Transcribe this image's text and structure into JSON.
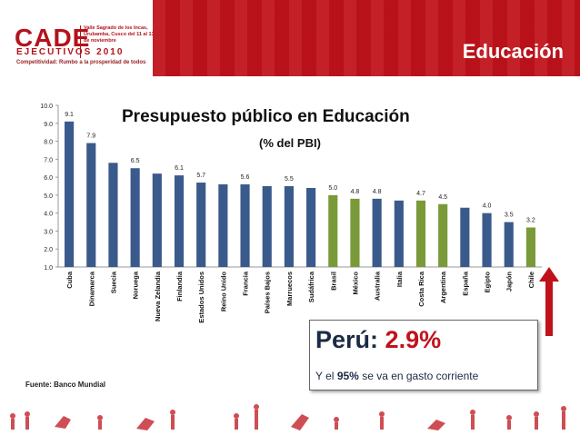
{
  "header": {
    "logo": "CADE",
    "logo_sub": "EJECUTIVOS 2010",
    "logo_tagline": "Competitividad: Rumbo a la prosperidad de todos",
    "logo_info": "Valle Sagrado de los Incas, Urubamba, Cusco del 11 al 13 de noviembre",
    "section_title": "Educación"
  },
  "colors": {
    "brand_red": "#c0121b",
    "bar_blue": "#3b5a8c",
    "bar_green": "#7a9a3a",
    "navy_text": "#1b2a44"
  },
  "chart_data": {
    "type": "bar",
    "title": "Presupuesto público en Educación",
    "subtitle": "(% del PBI)",
    "ylim": [
      1.0,
      10.0
    ],
    "yticks": [
      "1.0",
      "2.0",
      "3.0",
      "4.0",
      "5.0",
      "6.0",
      "7.0",
      "8.0",
      "9.0",
      "10.0"
    ],
    "categories": [
      "Cuba",
      "Dinamarca",
      "Suecia",
      "Noruega",
      "Nueva Zelandia",
      "Finlandia",
      "Estados Unidos",
      "Reino Unido",
      "Francia",
      "Países Bajos",
      "Marruecos",
      "Sudáfrica",
      "Brasil",
      "México",
      "Australia",
      "Italia",
      "Costa Rica",
      "Argentina",
      "España",
      "Egipto",
      "Japón",
      "Chile"
    ],
    "values": [
      9.1,
      7.9,
      6.8,
      6.5,
      6.2,
      6.1,
      5.7,
      5.6,
      5.6,
      5.5,
      5.5,
      5.4,
      5.0,
      4.8,
      4.8,
      4.7,
      4.7,
      4.5,
      4.3,
      4.0,
      3.5,
      3.2
    ],
    "labels": [
      "9.1",
      "7.9",
      "",
      "6.5",
      "",
      "6.1",
      "5.7",
      "",
      "5.6",
      "",
      "5.5",
      "",
      "5.0",
      "4.8",
      "4.8",
      "",
      "4.7",
      "4.5",
      "",
      "4.0",
      "3.5",
      "3.2"
    ],
    "highlight": [
      false,
      false,
      false,
      false,
      false,
      false,
      false,
      false,
      false,
      false,
      false,
      false,
      true,
      true,
      false,
      false,
      true,
      true,
      false,
      false,
      false,
      true
    ]
  },
  "peru": {
    "label": "Perú:",
    "value": "2.9%",
    "note_prefix": "Y el",
    "note_pct": "95%",
    "note_suffix": "se va en gasto corriente"
  },
  "source": "Fuente: Banco Mundial"
}
